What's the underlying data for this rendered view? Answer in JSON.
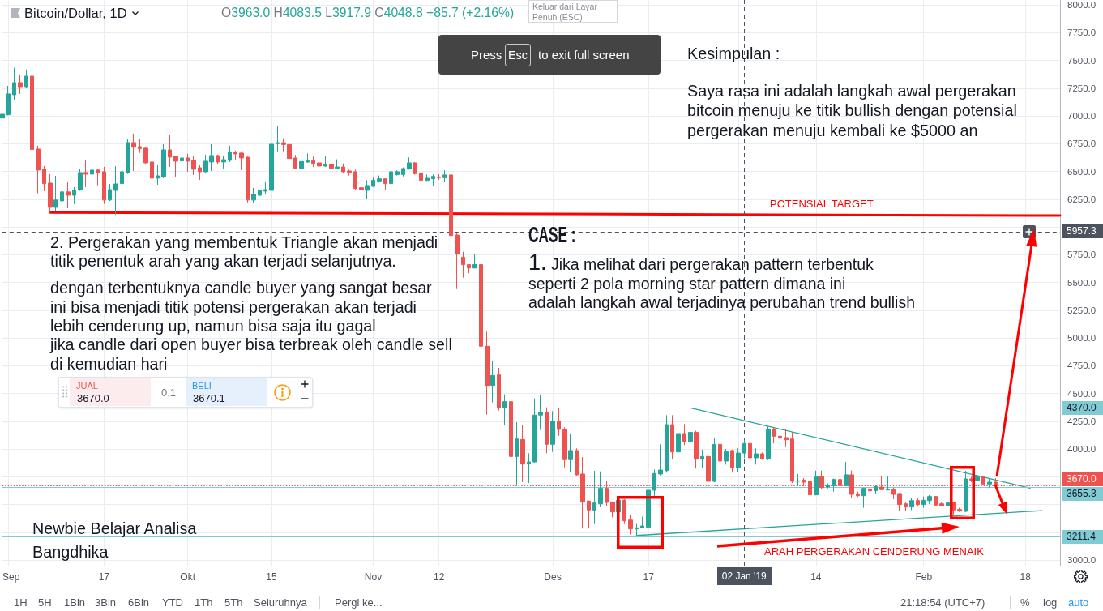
{
  "chart_data": {
    "type": "candlestick",
    "title": "Bitcoin/Dollar, 1D",
    "xlim": [
      "2018-08-31",
      "2019-02-23T19:00"
    ],
    "ylim": [
      2949,
      8044
    ],
    "xticks": [
      {
        "value": "2018-09-01",
        "label": "Sep"
      },
      {
        "value": "2018-09-17",
        "label": "17"
      },
      {
        "value": "2018-10-01",
        "label": "Okt"
      },
      {
        "value": "2018-10-15",
        "label": "15"
      },
      {
        "value": "2018-11-01",
        "label": "Nov"
      },
      {
        "value": "2018-11-12",
        "label": "12"
      },
      {
        "value": "2018-12-01",
        "label": "Des"
      },
      {
        "value": "2018-12-17",
        "label": "17"
      },
      {
        "value": "2019-01-01",
        "label": null
      },
      {
        "value": "2019-01-14",
        "label": "14"
      },
      {
        "value": "2019-02-01",
        "label": "Feb"
      },
      {
        "value": "2019-02-18",
        "label": "18"
      }
    ],
    "yticks": [
      {
        "value": 3000,
        "label": "3000.0"
      },
      {
        "value": 3250,
        "label": null
      },
      {
        "value": 3500,
        "label": null
      },
      {
        "value": 3750,
        "label": null
      },
      {
        "value": 4000,
        "label": "4000.0"
      },
      {
        "value": 4250,
        "label": "4250.0"
      },
      {
        "value": 4500,
        "label": "4500.0"
      },
      {
        "value": 4750,
        "label": "4750.0"
      },
      {
        "value": 5000,
        "label": "5000.0"
      },
      {
        "value": 5250,
        "label": "5250.0"
      },
      {
        "value": 5500,
        "label": "5500.0"
      },
      {
        "value": 5750,
        "label": "5750.0"
      },
      {
        "value": 6000,
        "label": null
      },
      {
        "value": 6250,
        "label": "6250.0"
      },
      {
        "value": 6500,
        "label": "6500.0"
      },
      {
        "value": 6750,
        "label": "6750.0"
      },
      {
        "value": 7000,
        "label": "7000.0"
      },
      {
        "value": 7250,
        "label": "7250.0"
      },
      {
        "value": 7500,
        "label": "7500.0"
      },
      {
        "value": 7750,
        "label": "7750.0"
      },
      {
        "value": 8000,
        "label": "8000.0"
      }
    ],
    "grid": true,
    "marker": "none",
    "series": [
      {
        "x": [
          "2018-08-31",
          "2018-09-01",
          "2018-09-02",
          "2018-09-03",
          "2018-09-04",
          "2018-09-05",
          "2018-09-06",
          "2018-09-07",
          "2018-09-08",
          "2018-09-09",
          "2018-09-10",
          "2018-09-11",
          "2018-09-12",
          "2018-09-13",
          "2018-09-14",
          "2018-09-15",
          "2018-09-16",
          "2018-09-17",
          "2018-09-18",
          "2018-09-19",
          "2018-09-20",
          "2018-09-21",
          "2018-09-22",
          "2018-09-23",
          "2018-09-24",
          "2018-09-25",
          "2018-09-26",
          "2018-09-27",
          "2018-09-28",
          "2018-09-29",
          "2018-09-30",
          "2018-10-01",
          "2018-10-02",
          "2018-10-03",
          "2018-10-04",
          "2018-10-05",
          "2018-10-06",
          "2018-10-07",
          "2018-10-08",
          "2018-10-09",
          "2018-10-10",
          "2018-10-11",
          "2018-10-12",
          "2018-10-13",
          "2018-10-14",
          "2018-10-15",
          "2018-10-16",
          "2018-10-17",
          "2018-10-18",
          "2018-10-19",
          "2018-10-20",
          "2018-10-21",
          "2018-10-22",
          "2018-10-23",
          "2018-10-24",
          "2018-10-25",
          "2018-10-26",
          "2018-10-27",
          "2018-10-28",
          "2018-10-29",
          "2018-10-30",
          "2018-10-31",
          "2018-11-01",
          "2018-11-02",
          "2018-11-03",
          "2018-11-04",
          "2018-11-05",
          "2018-11-06",
          "2018-11-07",
          "2018-11-08",
          "2018-11-09",
          "2018-11-10",
          "2018-11-11",
          "2018-11-12",
          "2018-11-13",
          "2018-11-14",
          "2018-11-15",
          "2018-11-16",
          "2018-11-17",
          "2018-11-18",
          "2018-11-19",
          "2018-11-20",
          "2018-11-21",
          "2018-11-22",
          "2018-11-23",
          "2018-11-24",
          "2018-11-25",
          "2018-11-26",
          "2018-11-27",
          "2018-11-28",
          "2018-11-29",
          "2018-11-30",
          "2018-12-01",
          "2018-12-02",
          "2018-12-03",
          "2018-12-04",
          "2018-12-05",
          "2018-12-06",
          "2018-12-07",
          "2018-12-08",
          "2018-12-09",
          "2018-12-10",
          "2018-12-11",
          "2018-12-12",
          "2018-12-13",
          "2018-12-14",
          "2018-12-15",
          "2018-12-16",
          "2018-12-17",
          "2018-12-18",
          "2018-12-19",
          "2018-12-20",
          "2018-12-21",
          "2018-12-22",
          "2018-12-23",
          "2018-12-24",
          "2018-12-25",
          "2018-12-26",
          "2018-12-27",
          "2018-12-28",
          "2018-12-29",
          "2018-12-30",
          "2018-12-31",
          "2019-01-01",
          "2019-01-02",
          "2019-01-03",
          "2019-01-04",
          "2019-01-05",
          "2019-01-06",
          "2019-01-07",
          "2019-01-08",
          "2019-01-09",
          "2019-01-10",
          "2019-01-11",
          "2019-01-12",
          "2019-01-13",
          "2019-01-14",
          "2019-01-15",
          "2019-01-16",
          "2019-01-17",
          "2019-01-18",
          "2019-01-19",
          "2019-01-20",
          "2019-01-21",
          "2019-01-22",
          "2019-01-23",
          "2019-01-24",
          "2019-01-25",
          "2019-01-26",
          "2019-01-27",
          "2019-01-28",
          "2019-01-29",
          "2019-01-30",
          "2019-01-31",
          "2019-02-01",
          "2019-02-02",
          "2019-02-03",
          "2019-02-04",
          "2019-02-05",
          "2019-02-06",
          "2019-02-07",
          "2019-02-08",
          "2019-02-09",
          "2019-02-10",
          "2019-02-11",
          "2019-02-12",
          "2019-02-13"
        ],
        "ohlc": [
          [
            6980,
            7020,
            6975,
            7015
          ],
          [
            7010,
            7270,
            7005,
            7198
          ],
          [
            7190,
            7434,
            7142,
            7300
          ],
          [
            7300,
            7373,
            7198,
            7263
          ],
          [
            7263,
            7417,
            7251,
            7358
          ],
          [
            7358,
            7400,
            6690,
            6697
          ],
          [
            6701,
            6731,
            6302,
            6512
          ],
          [
            6519,
            6548,
            6322,
            6390
          ],
          [
            6395,
            6475,
            6127,
            6176
          ],
          [
            6176,
            6460,
            6139,
            6242
          ],
          [
            6234,
            6370,
            6220,
            6315
          ],
          [
            6315,
            6402,
            6168,
            6285
          ],
          [
            6285,
            6358,
            6207,
            6329
          ],
          [
            6331,
            6526,
            6325,
            6490
          ],
          [
            6490,
            6602,
            6358,
            6475
          ],
          [
            6475,
            6570,
            6470,
            6512
          ],
          [
            6512,
            6519,
            6375,
            6492
          ],
          [
            6497,
            6541,
            6207,
            6242
          ],
          [
            6242,
            6387,
            6232,
            6336
          ],
          [
            6329,
            6548,
            6108,
            6387
          ],
          [
            6390,
            6585,
            6339,
            6497
          ],
          [
            6490,
            6789,
            6477,
            6760
          ],
          [
            6760,
            6840,
            6504,
            6718
          ],
          [
            6723,
            6789,
            6667,
            6704
          ],
          [
            6709,
            6723,
            6570,
            6577
          ],
          [
            6585,
            6590,
            6329,
            6439
          ],
          [
            6439,
            6555,
            6380,
            6460
          ],
          [
            6453,
            6745,
            6439,
            6694
          ],
          [
            6694,
            6825,
            6541,
            6628
          ],
          [
            6636,
            6640,
            6453,
            6592
          ],
          [
            6594,
            6665,
            6526,
            6621
          ],
          [
            6621,
            6658,
            6497,
            6592
          ],
          [
            6599,
            6643,
            6468,
            6519
          ],
          [
            6533,
            6555,
            6424,
            6497
          ],
          [
            6497,
            6650,
            6490,
            6592
          ],
          [
            6585,
            6745,
            6504,
            6643
          ],
          [
            6643,
            6650,
            6563,
            6585
          ],
          [
            6585,
            6643,
            6526,
            6606
          ],
          [
            6599,
            6731,
            6585,
            6672
          ],
          [
            6672,
            6687,
            6606,
            6658
          ],
          [
            6665,
            6670,
            6512,
            6621
          ],
          [
            6628,
            6632,
            6220,
            6242
          ],
          [
            6242,
            6351,
            6220,
            6293
          ],
          [
            6285,
            6336,
            6280,
            6329
          ],
          [
            6322,
            6402,
            6300,
            6336
          ],
          [
            6329,
            7789,
            6293,
            6745
          ],
          [
            6750,
            6905,
            6681,
            6759
          ],
          [
            6759,
            6798,
            6681,
            6742
          ],
          [
            6742,
            6786,
            6579,
            6616
          ],
          [
            6621,
            6648,
            6525,
            6528
          ],
          [
            6528,
            6621,
            6521,
            6589
          ],
          [
            6584,
            6662,
            6580,
            6597
          ],
          [
            6597,
            6633,
            6540,
            6572
          ],
          [
            6577,
            6597,
            6540,
            6548
          ],
          [
            6548,
            6638,
            6540,
            6565
          ],
          [
            6565,
            6572,
            6470,
            6528
          ],
          [
            6528,
            6609,
            6521,
            6540
          ],
          [
            6540,
            6572,
            6487,
            6497
          ],
          [
            6504,
            6516,
            6463,
            6492
          ],
          [
            6497,
            6516,
            6334,
            6346
          ],
          [
            6353,
            6419,
            6312,
            6334
          ],
          [
            6329,
            6421,
            6249,
            6373
          ],
          [
            6365,
            6443,
            6360,
            6419
          ],
          [
            6414,
            6463,
            6399,
            6433
          ],
          [
            6433,
            6438,
            6329,
            6390
          ],
          [
            6390,
            6536,
            6365,
            6497
          ],
          [
            6472,
            6511,
            6463,
            6497
          ],
          [
            6472,
            6536,
            6455,
            6526
          ],
          [
            6521,
            6626,
            6516,
            6577
          ],
          [
            6577,
            6584,
            6470,
            6480
          ],
          [
            6487,
            6504,
            6399,
            6419
          ],
          [
            6419,
            6472,
            6414,
            6438
          ],
          [
            6433,
            6472,
            6365,
            6455
          ],
          [
            6450,
            6475,
            6426,
            6443
          ],
          [
            6443,
            6511,
            6402,
            6468
          ],
          [
            6468,
            6492,
            5689,
            5922
          ],
          [
            5927,
            5947,
            5440,
            5757
          ],
          [
            5728,
            5776,
            5543,
            5660
          ],
          [
            5660,
            5665,
            5582,
            5630
          ],
          [
            5630,
            5752,
            5625,
            5660
          ],
          [
            5660,
            5665,
            4864,
            4925
          ],
          [
            4925,
            5056,
            4309,
            4572
          ],
          [
            4572,
            4796,
            4419,
            4662
          ],
          [
            4667,
            4730,
            4346,
            4370
          ],
          [
            4370,
            4492,
            4212,
            4426
          ],
          [
            4426,
            4528,
            3828,
            3932
          ],
          [
            3932,
            4241,
            3670,
            4090
          ],
          [
            4085,
            4212,
            3701,
            3864
          ],
          [
            3864,
            3961,
            3694,
            3883
          ],
          [
            3883,
            4455,
            3878,
            4305
          ],
          [
            4305,
            4487,
            4171,
            4329
          ],
          [
            4329,
            4375,
            3961,
            4042
          ],
          [
            4042,
            4341,
            3974,
            4248
          ],
          [
            4248,
            4370,
            4119,
            4175
          ],
          [
            4175,
            4195,
            3835,
            3903
          ],
          [
            3903,
            4139,
            3791,
            3986
          ],
          [
            3986,
            4005,
            3760,
            3767
          ],
          [
            3774,
            3927,
            3283,
            3523
          ],
          [
            3531,
            3535,
            3283,
            3450
          ],
          [
            3450,
            3803,
            3324,
            3514
          ],
          [
            3506,
            3798,
            3475,
            3645
          ],
          [
            3645,
            3713,
            3482,
            3518
          ],
          [
            3523,
            3525,
            3385,
            3433
          ],
          [
            3433,
            3621,
            3428,
            3538
          ],
          [
            3538,
            3548,
            3324,
            3353
          ],
          [
            3360,
            3402,
            3231,
            3280
          ],
          [
            3280,
            3324,
            3226,
            3290
          ],
          [
            3290,
            3390,
            3285,
            3307
          ],
          [
            3295,
            3750,
            3290,
            3628
          ],
          [
            3628,
            3815,
            3555,
            3779
          ],
          [
            3774,
            4041,
            3762,
            3810
          ],
          [
            3805,
            4304,
            3786,
            4219
          ],
          [
            4219,
            4304,
            3908,
            3973
          ],
          [
            3973,
            4224,
            3937,
            4139
          ],
          [
            4139,
            4224,
            4034,
            4066
          ],
          [
            4066,
            4370,
            4060,
            4149
          ],
          [
            4149,
            4163,
            3823,
            3908
          ],
          [
            3908,
            3993,
            3823,
            3932
          ],
          [
            3932,
            3944,
            3689,
            3708
          ],
          [
            3708,
            4097,
            3700,
            4041
          ],
          [
            4041,
            4102,
            3864,
            3891
          ],
          [
            3891,
            4000,
            3859,
            3976
          ],
          [
            3986,
            3993,
            3786,
            3830
          ],
          [
            3830,
            4005,
            3791,
            3963
          ],
          [
            3963,
            4083.5,
            3917.9,
            4048.8
          ],
          [
            4049,
            4058,
            3878,
            3920
          ],
          [
            3920,
            4005,
            3859,
            3956
          ],
          [
            3956,
            3968,
            3903,
            3908
          ],
          [
            3908,
            4205,
            3900,
            4175
          ],
          [
            4175,
            4195,
            4049,
            4115
          ],
          [
            4115,
            4219,
            4058,
            4097
          ],
          [
            4102,
            4175,
            4017,
            4083
          ],
          [
            4090,
            4151,
            3694,
            3708
          ],
          [
            3708,
            3774,
            3664,
            3713
          ],
          [
            3720,
            3737,
            3664,
            3701
          ],
          [
            3708,
            3733,
            3579,
            3587
          ],
          [
            3587,
            3805,
            3582,
            3750
          ],
          [
            3750,
            3805,
            3635,
            3652
          ],
          [
            3657,
            3689,
            3645,
            3676
          ],
          [
            3669,
            3733,
            3616,
            3725
          ],
          [
            3725,
            3730,
            3664,
            3669
          ],
          [
            3669,
            3883,
            3664,
            3767
          ],
          [
            3767,
            3806,
            3555,
            3591
          ],
          [
            3596,
            3616,
            3567,
            3579
          ],
          [
            3579,
            3652,
            3470,
            3645
          ],
          [
            3640,
            3677,
            3604,
            3623
          ],
          [
            3623,
            3677,
            3591,
            3660
          ],
          [
            3657,
            3752,
            3628,
            3633
          ],
          [
            3630,
            3750,
            3628,
            3635
          ],
          [
            3635,
            3652,
            3548,
            3591
          ],
          [
            3599,
            3604,
            3441,
            3499
          ],
          [
            3506,
            3518,
            3441,
            3477
          ],
          [
            3477,
            3555,
            3450,
            3535
          ],
          [
            3535,
            3555,
            3489,
            3499
          ],
          [
            3499,
            3572,
            3470,
            3538
          ],
          [
            3535,
            3584,
            3506,
            3572
          ],
          [
            3572,
            3575,
            3482,
            3494
          ],
          [
            3506,
            3518,
            3482,
            3489
          ],
          [
            3489,
            3518,
            3487,
            3514
          ],
          [
            3518,
            3523,
            3409,
            3450
          ],
          [
            3455,
            3470,
            3433,
            3445
          ],
          [
            3438,
            3803,
            3433,
            3730
          ],
          [
            3730,
            3750,
            3701,
            3720
          ],
          [
            3718,
            3762,
            3669,
            3750
          ],
          [
            3750,
            3757,
            3680,
            3684
          ],
          [
            3684,
            3737,
            3652,
            3701
          ],
          [
            3701,
            3737,
            3635,
            3670
          ]
        ],
        "colors": [
          "#26a69a",
          "#26a69a",
          "#26a69a",
          "#ef5350",
          "#26a69a",
          "#ef5350",
          "#ef5350",
          "#ef5350",
          "#ef5350",
          "#26a69a",
          "#26a69a",
          "#ef5350",
          "#26a69a",
          "#26a69a",
          "#ef5350",
          "#26a69a",
          "#ef5350",
          "#ef5350",
          "#26a69a",
          "#26a69a",
          "#26a69a",
          "#26a69a",
          "#ef5350",
          "#ef5350",
          "#ef5350",
          "#ef5350",
          "#26a69a",
          "#26a69a",
          "#ef5350",
          "#ef5350",
          "#26a69a",
          "#ef5350",
          "#ef5350",
          "#ef5350",
          "#26a69a",
          "#26a69a",
          "#ef5350",
          "#26a69a",
          "#26a69a",
          "#ef5350",
          "#ef5350",
          "#ef5350",
          "#26a69a",
          "#26a69a",
          "#26a69a",
          "#26a69a",
          "#26a69a",
          "#ef5350",
          "#ef5350",
          "#ef5350",
          "#26a69a",
          "#26a69a",
          "#ef5350",
          "#ef5350",
          "#26a69a",
          "#ef5350",
          "#26a69a",
          "#ef5350",
          "#ef5350",
          "#ef5350",
          "#ef5350",
          "#26a69a",
          "#26a69a",
          "#26a69a",
          "#ef5350",
          "#26a69a",
          "#26a69a",
          "#26a69a",
          "#26a69a",
          "#ef5350",
          "#ef5350",
          "#26a69a",
          "#26a69a",
          "#ef5350",
          "#26a69a",
          "#ef5350",
          "#ef5350",
          "#ef5350",
          "#ef5350",
          "#26a69a",
          "#ef5350",
          "#ef5350",
          "#26a69a",
          "#ef5350",
          "#26a69a",
          "#ef5350",
          "#26a69a",
          "#ef5350",
          "#26a69a",
          "#26a69a",
          "#26a69a",
          "#ef5350",
          "#26a69a",
          "#ef5350",
          "#ef5350",
          "#26a69a",
          "#ef5350",
          "#ef5350",
          "#ef5350",
          "#26a69a",
          "#26a69a",
          "#ef5350",
          "#ef5350",
          "#26a69a",
          "#ef5350",
          "#ef5350",
          "#26a69a",
          "#26a69a",
          "#26a69a",
          "#26a69a",
          "#26a69a",
          "#26a69a",
          "#ef5350",
          "#26a69a",
          "#ef5350",
          "#26a69a",
          "#ef5350",
          "#26a69a",
          "#ef5350",
          "#26a69a",
          "#ef5350",
          "#26a69a",
          "#ef5350",
          "#26a69a",
          "#26a69a",
          "#ef5350",
          "#26a69a",
          "#ef5350",
          "#26a69a",
          "#ef5350",
          "#ef5350",
          "#ef5350",
          "#ef5350",
          "#26a69a",
          "#ef5350",
          "#ef5350",
          "#26a69a",
          "#ef5350",
          "#26a69a",
          "#26a69a",
          "#ef5350",
          "#26a69a",
          "#ef5350",
          "#ef5350",
          "#26a69a",
          "#ef5350",
          "#26a69a",
          "#ef5350",
          "#26a69a",
          "#ef5350",
          "#ef5350",
          "#ef5350",
          "#26a69a",
          "#ef5350",
          "#26a69a",
          "#26a69a",
          "#ef5350",
          "#ef5350",
          "#26a69a",
          "#ef5350",
          "#ef5350",
          "#26a69a",
          "#ef5350",
          "#26a69a",
          "#ef5350",
          "#26a69a",
          "#ef5350"
        ]
      },
      {
        "type": "line",
        "x": [
          "2018-09-08",
          "2019-02-23T19:00"
        ],
        "values": [
          6130,
          6102
        ],
        "color": "#ff0000"
      },
      {
        "type": "line",
        "x": [
          "2018-12-24",
          "2019-02-18T19:00"
        ],
        "values": [
          4370,
          3647
        ],
        "color": "#26a69a"
      },
      {
        "type": "line",
        "x": [
          "2018-12-15",
          "2019-02-20T19:00"
        ],
        "values": [
          3221,
          3445
        ],
        "color": "#26a69a"
      }
    ],
    "ref_lines": [
      {
        "axis": "y",
        "value": 5957.3,
        "label": "5957.3",
        "color": "#4c525e",
        "line_style": "dashed"
      },
      {
        "axis": "x",
        "value": "2019-01-02",
        "label": "02 Jan '19",
        "color": "#4c525e",
        "line_style": "dashed"
      },
      {
        "axis": "y",
        "value": 4370,
        "label": "4370.0",
        "color": "#80cbd4"
      },
      {
        "axis": "y",
        "value": 3670,
        "label": "3670.0",
        "color": "#ef5350",
        "line_style": "dotted"
      },
      {
        "axis": "y",
        "value": 3655.3,
        "label": "3655.3",
        "color": "#80cbd4"
      },
      {
        "axis": "y",
        "value": 3211.4,
        "label": "3211.4",
        "color": "#80cbd4"
      }
    ],
    "annotations": [
      "Kesimpulan :",
      "Saya rasa ini adalah langkah awal pergerakan\nbitcoin menuju ke titik bullish dengan potensial\npergerakan menuju kembali ke $5000 an",
      "CASE :",
      "1. Jika melihat dari pergerakan pattern terbentuk\nseperti 2 pola morning star pattern dimana ini\nadalah langkah awal terjadinya perubahan trend bullish",
      "2. Pergerakan yang membentuk Triangle akan menjadi\ntitik penentuk arah yang akan terjadi selanjutnya.",
      "dengan terbentuknya candle buyer yang sangat besar\nini bisa menjadi titik potensi pergerakan akan terjadi\nlebih cenderung up, namun bisa saja itu gagal\njika candle dari open buyer bisa terbreak oleh candle sell\ndi kemudian hari",
      "Newbie Belajar Analisa",
      "Bangdhika",
      "POTENSIAL TARGET",
      "ARAH PERGERAKAN CENDERUNG MENAIK",
      "O3963.0 H4083.5 L3917.9 C4048.8 +85.7 (+2.16%)",
      "Keluar dari Layar\nPenuh (ESC)",
      "Press",
      "Esc",
      "to exit full screen",
      "JUAL",
      "3670.0",
      "0.1",
      "BELI",
      "3670.1",
      "1H",
      "5H",
      "1Bln",
      "3Bln",
      "6Bln",
      "YTD",
      "1Th",
      "5Th",
      "Seluruhnya",
      "Pergi ke...",
      "21:18:54 (UTC+7)",
      "%",
      "log",
      "auto"
    ]
  }
}
